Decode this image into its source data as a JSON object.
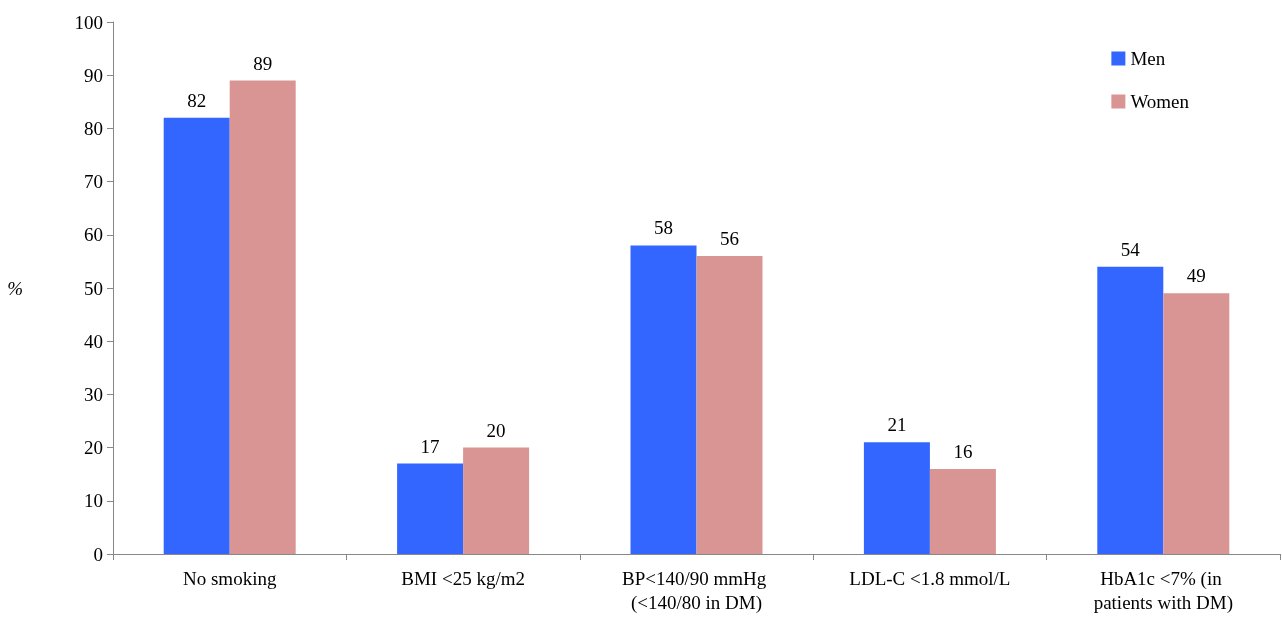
{
  "chart_data": {
    "type": "bar",
    "ylabel": "%",
    "categories": [
      "No smoking",
      "BMI <25 kg/m2",
      "BP<140/90 mmHg (<140/80 in DM)",
      "LDL-C <1.8 mmol/L",
      "HbA1c <7% (in patients with DM)"
    ],
    "series": [
      {
        "name": "Men",
        "color": "#3366ff",
        "values": [
          82,
          17,
          58,
          21,
          54
        ]
      },
      {
        "name": "Women",
        "color": "#d99594",
        "values": [
          89,
          20,
          56,
          16,
          49
        ]
      }
    ],
    "ylim": [
      0,
      100
    ],
    "yticks": [
      0,
      10,
      20,
      30,
      40,
      50,
      60,
      70,
      80,
      90,
      100
    ],
    "data_labels": true,
    "grid": false,
    "legend": "top right"
  }
}
